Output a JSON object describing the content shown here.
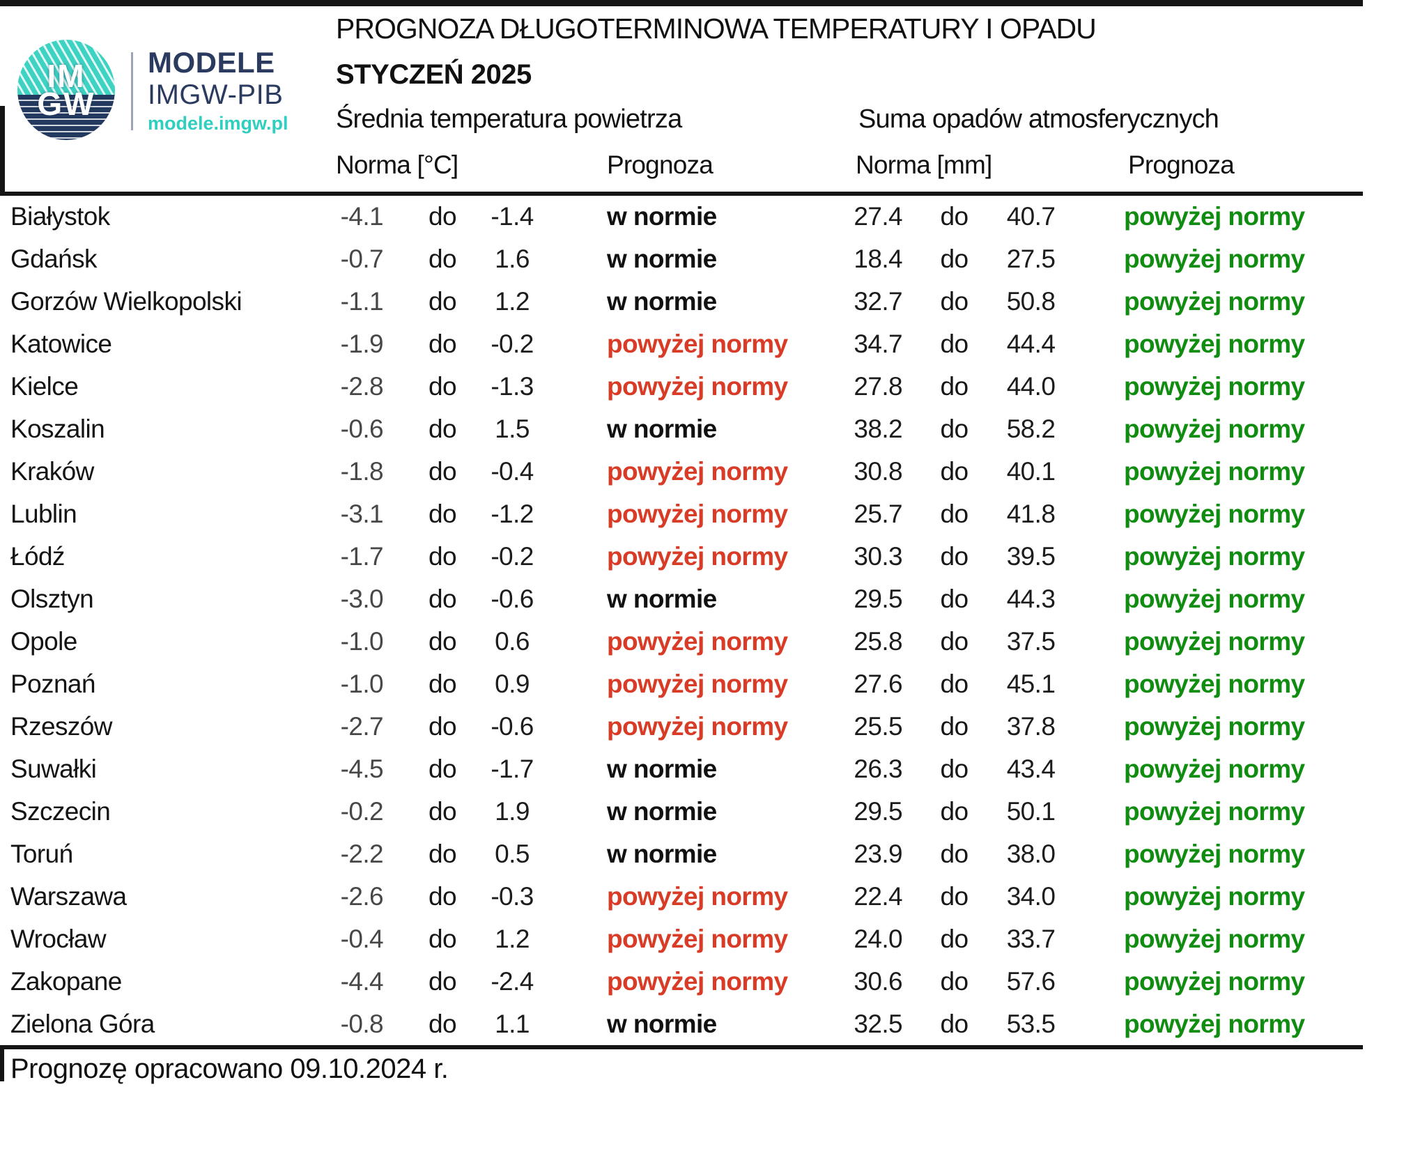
{
  "header": {
    "logo": {
      "circle_top": "IM",
      "circle_bottom": "GW",
      "brand_line1": "MODELE",
      "brand_line2": "IMGW-PIB",
      "brand_url": "modele.imgw.pl"
    },
    "title": "PROGNOZA DŁUGOTERMINOWA TEMPERATURY I OPADU",
    "subtitle": "STYCZEŃ 2025"
  },
  "table": {
    "group_headers": {
      "temperature": "Średnia temperatura powietrza",
      "precipitation": "Suma opadów atmosferycznych"
    },
    "column_headers": {
      "temp_norm": "Norma [°C]",
      "temp_forecast": "Prognoza",
      "precip_norm": "Norma [mm]",
      "precip_forecast": "Prognoza"
    },
    "range_separator": "do",
    "forecast_labels": {
      "normal": "w normie",
      "above": "powyżej normy"
    },
    "rows": [
      {
        "city": "Białystok",
        "temp_norm_low": "-4.1",
        "temp_norm_high": "-1.4",
        "temp_forecast": "w normie",
        "precip_norm_low": "27.4",
        "precip_norm_high": "40.7",
        "precip_forecast": "powyżej normy"
      },
      {
        "city": "Gdańsk",
        "temp_norm_low": "-0.7",
        "temp_norm_high": "1.6",
        "temp_forecast": "w normie",
        "precip_norm_low": "18.4",
        "precip_norm_high": "27.5",
        "precip_forecast": "powyżej normy"
      },
      {
        "city": "Gorzów Wielkopolski",
        "temp_norm_low": "-1.1",
        "temp_norm_high": "1.2",
        "temp_forecast": "w normie",
        "precip_norm_low": "32.7",
        "precip_norm_high": "50.8",
        "precip_forecast": "powyżej normy"
      },
      {
        "city": "Katowice",
        "temp_norm_low": "-1.9",
        "temp_norm_high": "-0.2",
        "temp_forecast": "powyżej normy",
        "precip_norm_low": "34.7",
        "precip_norm_high": "44.4",
        "precip_forecast": "powyżej normy"
      },
      {
        "city": "Kielce",
        "temp_norm_low": "-2.8",
        "temp_norm_high": "-1.3",
        "temp_forecast": "powyżej normy",
        "precip_norm_low": "27.8",
        "precip_norm_high": "44.0",
        "precip_forecast": "powyżej normy"
      },
      {
        "city": "Koszalin",
        "temp_norm_low": "-0.6",
        "temp_norm_high": "1.5",
        "temp_forecast": "w normie",
        "precip_norm_low": "38.2",
        "precip_norm_high": "58.2",
        "precip_forecast": "powyżej normy"
      },
      {
        "city": "Kraków",
        "temp_norm_low": "-1.8",
        "temp_norm_high": "-0.4",
        "temp_forecast": "powyżej normy",
        "precip_norm_low": "30.8",
        "precip_norm_high": "40.1",
        "precip_forecast": "powyżej normy"
      },
      {
        "city": "Lublin",
        "temp_norm_low": "-3.1",
        "temp_norm_high": "-1.2",
        "temp_forecast": "powyżej normy",
        "precip_norm_low": "25.7",
        "precip_norm_high": "41.8",
        "precip_forecast": "powyżej normy"
      },
      {
        "city": "Łódź",
        "temp_norm_low": "-1.7",
        "temp_norm_high": "-0.2",
        "temp_forecast": "powyżej normy",
        "precip_norm_low": "30.3",
        "precip_norm_high": "39.5",
        "precip_forecast": "powyżej normy"
      },
      {
        "city": "Olsztyn",
        "temp_norm_low": "-3.0",
        "temp_norm_high": "-0.6",
        "temp_forecast": "w normie",
        "precip_norm_low": "29.5",
        "precip_norm_high": "44.3",
        "precip_forecast": "powyżej normy"
      },
      {
        "city": "Opole",
        "temp_norm_low": "-1.0",
        "temp_norm_high": "0.6",
        "temp_forecast": "powyżej normy",
        "precip_norm_low": "25.8",
        "precip_norm_high": "37.5",
        "precip_forecast": "powyżej normy"
      },
      {
        "city": "Poznań",
        "temp_norm_low": "-1.0",
        "temp_norm_high": "0.9",
        "temp_forecast": "powyżej normy",
        "precip_norm_low": "27.6",
        "precip_norm_high": "45.1",
        "precip_forecast": "powyżej normy"
      },
      {
        "city": "Rzeszów",
        "temp_norm_low": "-2.7",
        "temp_norm_high": "-0.6",
        "temp_forecast": "powyżej normy",
        "precip_norm_low": "25.5",
        "precip_norm_high": "37.8",
        "precip_forecast": "powyżej normy"
      },
      {
        "city": "Suwałki",
        "temp_norm_low": "-4.5",
        "temp_norm_high": "-1.7",
        "temp_forecast": "w normie",
        "precip_norm_low": "26.3",
        "precip_norm_high": "43.4",
        "precip_forecast": "powyżej normy"
      },
      {
        "city": "Szczecin",
        "temp_norm_low": "-0.2",
        "temp_norm_high": "1.9",
        "temp_forecast": "w normie",
        "precip_norm_low": "29.5",
        "precip_norm_high": "50.1",
        "precip_forecast": "powyżej normy"
      },
      {
        "city": "Toruń",
        "temp_norm_low": "-2.2",
        "temp_norm_high": "0.5",
        "temp_forecast": "w normie",
        "precip_norm_low": "23.9",
        "precip_norm_high": "38.0",
        "precip_forecast": "powyżej normy"
      },
      {
        "city": "Warszawa",
        "temp_norm_low": "-2.6",
        "temp_norm_high": "-0.3",
        "temp_forecast": "powyżej normy",
        "precip_norm_low": "22.4",
        "precip_norm_high": "34.0",
        "precip_forecast": "powyżej normy"
      },
      {
        "city": "Wrocław",
        "temp_norm_low": "-0.4",
        "temp_norm_high": "1.2",
        "temp_forecast": "powyżej normy",
        "precip_norm_low": "24.0",
        "precip_norm_high": "33.7",
        "precip_forecast": "powyżej normy"
      },
      {
        "city": "Zakopane",
        "temp_norm_low": "-4.4",
        "temp_norm_high": "-2.4",
        "temp_forecast": "powyżej normy",
        "precip_norm_low": "30.6",
        "precip_norm_high": "57.6",
        "precip_forecast": "powyżej normy"
      },
      {
        "city": "Zielona Góra",
        "temp_norm_low": "-0.8",
        "temp_norm_high": "1.1",
        "temp_forecast": "w normie",
        "precip_norm_low": "32.5",
        "precip_norm_high": "53.5",
        "precip_forecast": "powyżej normy"
      }
    ]
  },
  "footer": {
    "note": "Prognozę opracowano 09.10.2024 r."
  },
  "colors": {
    "forecast_above_temperature": "#d83b26",
    "forecast_above_precipitation": "#108c10",
    "forecast_normal": "#111111",
    "brand_navy": "#2b3a5f",
    "brand_teal": "#3ed2c3"
  }
}
